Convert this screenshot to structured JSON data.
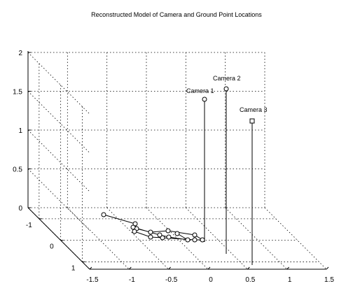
{
  "chart_data": {
    "type": "scatter3d",
    "title": "Reconstructed Model of Camera and Ground Point Locations",
    "grid": true,
    "axes": {
      "x_ticks": [
        "-1.5",
        "-1",
        "-0.5",
        "0",
        "0.5",
        "1",
        "1.5"
      ],
      "y_ticks": [
        "-1",
        "0",
        "1"
      ],
      "z_ticks": [
        "0",
        "0.5",
        "1",
        "1.5",
        "2"
      ]
    },
    "cameras": [
      {
        "name": "Camera 1",
        "marker": "circle",
        "height": 1.4
      },
      {
        "name": "Camera 2",
        "marker": "circle",
        "height": 1.55
      },
      {
        "name": "Camera 3",
        "marker": "square",
        "height": 1.1
      }
    ],
    "ground_points": {
      "marker": "circle",
      "connected": true,
      "count": 16
    }
  }
}
